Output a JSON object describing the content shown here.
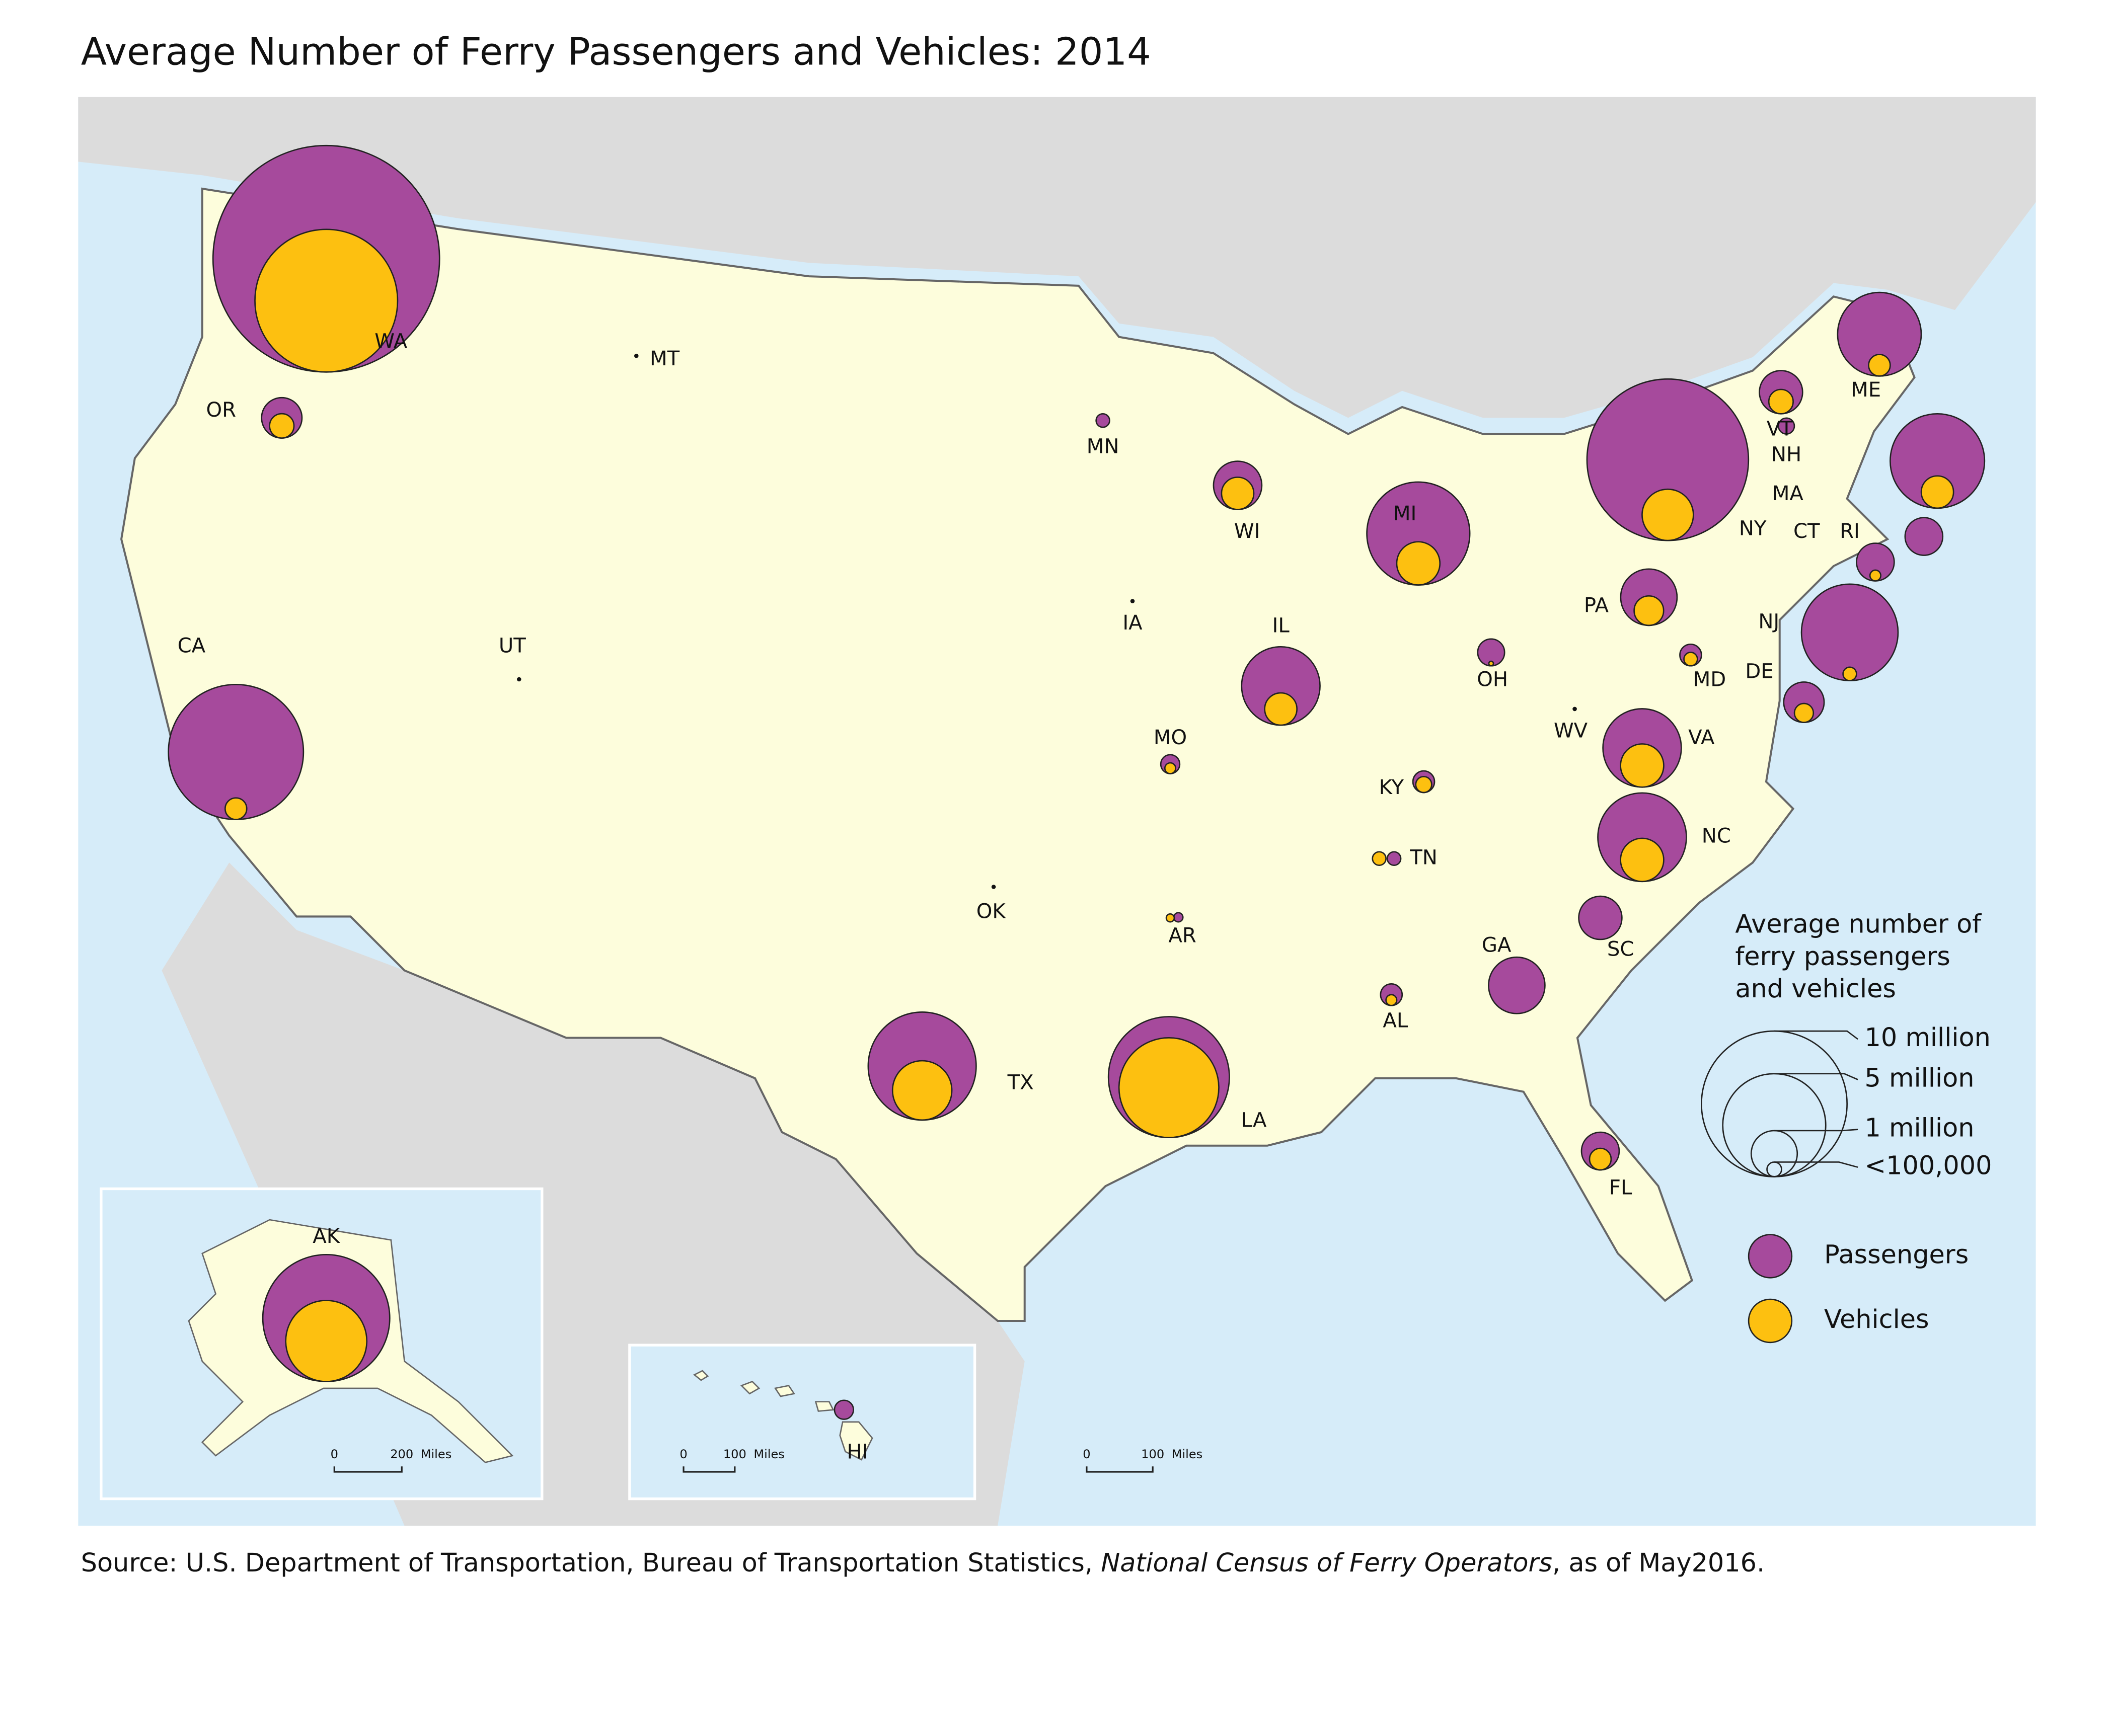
{
  "chart_data": {
    "type": "bubble_map",
    "title": "Average Number of Ferry Passengers and Vehicles: 2014",
    "source": {
      "prefix": "Source: U.S. Department of Transportation, Bureau of Transportation Statistics, ",
      "italic": "National Census of Ferry Operators",
      "suffix": ", as of May2016."
    },
    "series": [
      {
        "key": "passengers",
        "name": "Passengers",
        "color": "#a64a9c"
      },
      {
        "key": "vehicles",
        "name": "Vehicles",
        "color": "#fdc010"
      }
    ],
    "legend_title": [
      "Average number of",
      "ferry passengers",
      "and vehicles"
    ],
    "legend_sizes": [
      {
        "value": 10000000,
        "label": "10 million"
      },
      {
        "value": 5000000,
        "label": "5 million"
      },
      {
        "value": 1000000,
        "label": "1 million"
      },
      {
        "value": 100000,
        "label": "<100,000"
      }
    ],
    "states": [
      {
        "label": "WA",
        "passengers": 24200000,
        "vehicles": 9600000
      },
      {
        "label": "OR",
        "passengers": 770000,
        "vehicles": 280000
      },
      {
        "label": "CA",
        "passengers": 8600000,
        "vehicles": 220000
      },
      {
        "label": "MT",
        "passengers": 10000,
        "vehicles": null
      },
      {
        "label": "UT",
        "passengers": 5000,
        "vehicles": null
      },
      {
        "label": "MN",
        "passengers": 86000,
        "vehicles": null
      },
      {
        "label": "WI",
        "passengers": 1100000,
        "vehicles": 490000
      },
      {
        "label": "MI",
        "passengers": 5000000,
        "vehicles": 880000
      },
      {
        "label": "IA",
        "passengers": 5000,
        "vehicles": null
      },
      {
        "label": "IL",
        "passengers": 2900000,
        "vehicles": 490000
      },
      {
        "label": "MO",
        "passengers": 170000,
        "vehicles": 55000
      },
      {
        "label": "OH",
        "passengers": 340000,
        "vehicles": 10000
      },
      {
        "label": "KY",
        "passengers": 220000,
        "vehicles": 120000
      },
      {
        "label": "WV",
        "passengers": 5000,
        "vehicles": null
      },
      {
        "label": "TN",
        "passengers": 86000,
        "vehicles": 86000
      },
      {
        "label": "AR",
        "passengers": 40000,
        "vehicles": 30000
      },
      {
        "label": "OK",
        "passengers": 5000,
        "vehicles": null
      },
      {
        "label": "TX",
        "passengers": 5500000,
        "vehicles": 1660000
      },
      {
        "label": "LA",
        "passengers": 6900000,
        "vehicles": 4700000
      },
      {
        "label": "AL",
        "passengers": 220000,
        "vehicles": 55000
      },
      {
        "label": "GA",
        "passengers": 1500000,
        "vehicles": null
      },
      {
        "label": "SC",
        "passengers": 880000,
        "vehicles": null
      },
      {
        "label": "FL",
        "passengers": 670000,
        "vehicles": 220000
      },
      {
        "label": "NC",
        "passengers": 3700000,
        "vehicles": 880000
      },
      {
        "label": "VA",
        "passengers": 2900000,
        "vehicles": 880000
      },
      {
        "label": "MD",
        "passengers": 220000,
        "vehicles": 86000
      },
      {
        "label": "DE",
        "passengers": 770000,
        "vehicles": 170000
      },
      {
        "label": "NJ",
        "passengers": 4400000,
        "vehicles": 86000
      },
      {
        "label": "NY",
        "passengers": 12300000,
        "vehicles": 1240000
      },
      {
        "label": "PA",
        "passengers": 1500000,
        "vehicles": 410000
      },
      {
        "label": "CT",
        "passengers": 670000,
        "vehicles": 55000
      },
      {
        "label": "RI",
        "passengers": 670000,
        "vehicles": null
      },
      {
        "label": "MA",
        "passengers": 4200000,
        "vehicles": 490000
      },
      {
        "label": "NH",
        "passengers": 120000,
        "vehicles": null
      },
      {
        "label": "VT",
        "passengers": 880000,
        "vehicles": 280000
      },
      {
        "label": "ME",
        "passengers": 3300000,
        "vehicles": 220000
      },
      {
        "label": "AK",
        "passengers": 7600000,
        "vehicles": 3100000
      },
      {
        "label": "HI",
        "passengers": 170000,
        "vehicles": null
      }
    ],
    "scale_bars": [
      {
        "zero": 0,
        "distance": 200,
        "unit": "Miles"
      },
      {
        "zero": 0,
        "distance": 100,
        "unit": "Miles"
      },
      {
        "zero": 0,
        "distance": 100,
        "unit": "Miles"
      }
    ]
  }
}
